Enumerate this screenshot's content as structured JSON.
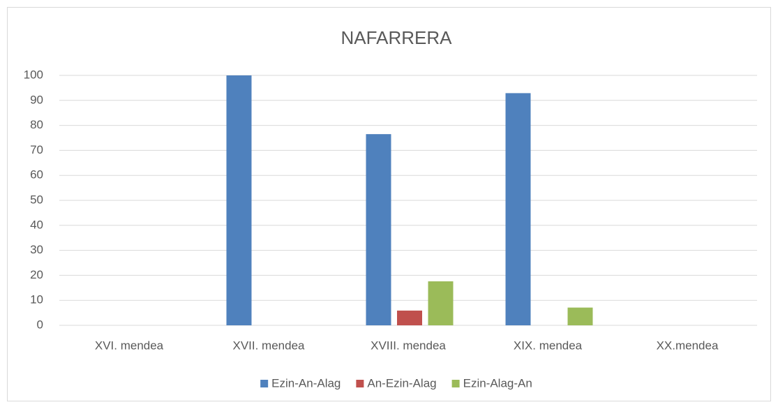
{
  "chart_data": {
    "type": "bar",
    "title": "NAFARRERA",
    "categories": [
      "XVI. mendea",
      "XVII. mendea",
      "XVIII. mendea",
      "XIX. mendea",
      "XX.mendea"
    ],
    "series": [
      {
        "name": "Ezin-An-Alag",
        "color": "#4f81bd",
        "values": [
          0,
          100,
          76.5,
          92.9,
          0
        ]
      },
      {
        "name": "An-Ezin-Alag",
        "color": "#c0504d",
        "values": [
          0,
          0,
          5.9,
          0,
          0
        ]
      },
      {
        "name": "Ezin-Alag-An",
        "color": "#9bbb59",
        "values": [
          0,
          0,
          17.6,
          7.1,
          0
        ]
      }
    ],
    "ylim": [
      0,
      100
    ],
    "yticks": [
      0,
      10,
      20,
      30,
      40,
      50,
      60,
      70,
      80,
      90,
      100
    ],
    "grid": true,
    "legend": "bottom"
  }
}
